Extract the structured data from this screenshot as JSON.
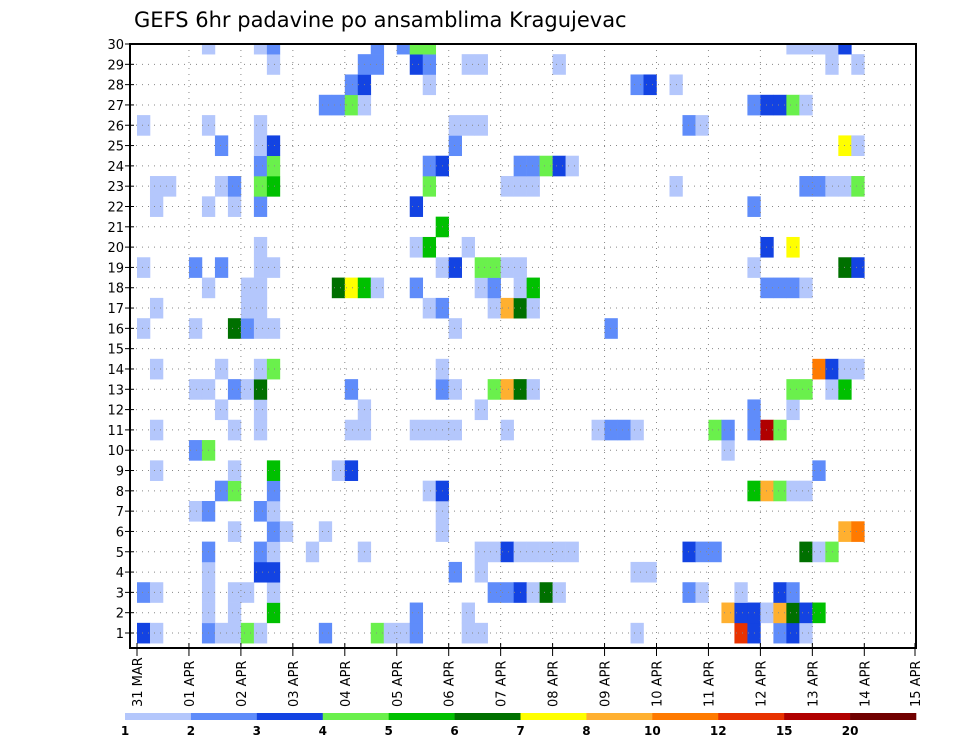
{
  "chart_data": {
    "type": "heatmap",
    "title": "GEFS 6hr padavine po ansamblima Kragujevac",
    "xlabel": "",
    "ylabel": "",
    "x_tick_labels": [
      "31 MAR",
      "01 APR",
      "02 APR",
      "03 APR",
      "04 APR",
      "05 APR",
      "06 APR",
      "07 APR",
      "08 APR",
      "09 APR",
      "10 APR",
      "11 APR",
      "12 APR",
      "13 APR",
      "14 APR",
      "15 APR"
    ],
    "y_tick_labels": [
      "1",
      "2",
      "3",
      "4",
      "5",
      "6",
      "7",
      "8",
      "9",
      "10",
      "11",
      "12",
      "13",
      "14",
      "15",
      "16",
      "17",
      "18",
      "19",
      "20",
      "21",
      "22",
      "23",
      "24",
      "25",
      "26",
      "27",
      "28",
      "29",
      "30"
    ],
    "ylim": [
      1,
      30
    ],
    "x_steps_per_day": 4,
    "x_step_hours": 6,
    "grid": true,
    "colorbar": {
      "labels": [
        "1",
        "2",
        "3",
        "4",
        "5",
        "6",
        "7",
        "8",
        "10",
        "12",
        "15",
        "20"
      ],
      "colors": [
        "#b4c7fc",
        "#5f8cfa",
        "#1343e2",
        "#6af04c",
        "#00c000",
        "#007000",
        "#ffff00",
        "#ffb030",
        "#ff7a00",
        "#e83200",
        "#b00000",
        "#700000"
      ],
      "placement": "bottom"
    },
    "cells_note": "each cell = [time_step_index, colorbar_level_index(1-12)] per ensemble member row",
    "rows": {
      "30": [
        [
          5,
          1
        ],
        [
          9,
          1
        ],
        [
          10,
          2
        ],
        [
          18,
          2
        ],
        [
          20,
          2
        ],
        [
          21,
          4
        ],
        [
          22,
          4
        ],
        [
          50,
          1
        ],
        [
          51,
          1
        ],
        [
          52,
          1
        ],
        [
          53,
          1
        ],
        [
          54,
          3
        ]
      ],
      "29": [
        [
          10,
          1
        ],
        [
          17,
          2
        ],
        [
          18,
          2
        ],
        [
          21,
          3
        ],
        [
          22,
          2
        ],
        [
          25,
          1
        ],
        [
          26,
          1
        ],
        [
          32,
          1
        ],
        [
          53,
          1
        ],
        [
          55,
          1
        ]
      ],
      "28": [
        [
          16,
          2
        ],
        [
          17,
          3
        ],
        [
          22,
          1
        ],
        [
          38,
          2
        ],
        [
          39,
          3
        ],
        [
          41,
          1
        ]
      ],
      "27": [
        [
          14,
          2
        ],
        [
          15,
          2
        ],
        [
          16,
          4
        ],
        [
          17,
          1
        ],
        [
          47,
          2
        ],
        [
          48,
          3
        ],
        [
          49,
          3
        ],
        [
          50,
          4
        ],
        [
          51,
          1
        ]
      ],
      "26": [
        [
          0,
          1
        ],
        [
          5,
          1
        ],
        [
          9,
          1
        ],
        [
          24,
          1
        ],
        [
          25,
          1
        ],
        [
          26,
          1
        ],
        [
          42,
          2
        ],
        [
          43,
          1
        ]
      ],
      "25": [
        [
          6,
          2
        ],
        [
          9,
          1
        ],
        [
          10,
          3
        ],
        [
          24,
          2
        ],
        [
          54,
          7
        ],
        [
          55,
          1
        ]
      ],
      "24": [
        [
          9,
          2
        ],
        [
          10,
          4
        ],
        [
          22,
          2
        ],
        [
          23,
          3
        ],
        [
          29,
          2
        ],
        [
          30,
          2
        ],
        [
          31,
          4
        ],
        [
          32,
          3
        ],
        [
          33,
          1
        ]
      ],
      "23": [
        [
          1,
          1
        ],
        [
          2,
          1
        ],
        [
          6,
          1
        ],
        [
          7,
          2
        ],
        [
          9,
          4
        ],
        [
          10,
          5
        ],
        [
          22,
          4
        ],
        [
          28,
          1
        ],
        [
          29,
          1
        ],
        [
          30,
          1
        ],
        [
          41,
          1
        ],
        [
          51,
          2
        ],
        [
          52,
          2
        ],
        [
          53,
          1
        ],
        [
          54,
          1
        ],
        [
          55,
          4
        ]
      ],
      "22": [
        [
          1,
          1
        ],
        [
          5,
          1
        ],
        [
          7,
          1
        ],
        [
          9,
          2
        ],
        [
          21,
          3
        ],
        [
          47,
          2
        ]
      ],
      "21": [
        [
          23,
          5
        ]
      ],
      "20": [
        [
          9,
          1
        ],
        [
          21,
          1
        ],
        [
          22,
          5
        ],
        [
          25,
          1
        ],
        [
          48,
          3
        ],
        [
          50,
          7
        ]
      ],
      "19": [
        [
          0,
          1
        ],
        [
          4,
          2
        ],
        [
          6,
          2
        ],
        [
          9,
          1
        ],
        [
          10,
          1
        ],
        [
          23,
          1
        ],
        [
          24,
          3
        ],
        [
          26,
          4
        ],
        [
          27,
          4
        ],
        [
          28,
          1
        ],
        [
          29,
          1
        ],
        [
          47,
          1
        ],
        [
          54,
          6
        ],
        [
          55,
          3
        ]
      ],
      "18": [
        [
          5,
          1
        ],
        [
          8,
          1
        ],
        [
          9,
          1
        ],
        [
          15,
          6
        ],
        [
          16,
          7
        ],
        [
          17,
          5
        ],
        [
          18,
          1
        ],
        [
          21,
          2
        ],
        [
          26,
          1
        ],
        [
          27,
          2
        ],
        [
          29,
          1
        ],
        [
          30,
          5
        ],
        [
          48,
          2
        ],
        [
          49,
          2
        ],
        [
          50,
          2
        ],
        [
          51,
          1
        ]
      ],
      "17": [
        [
          1,
          1
        ],
        [
          8,
          1
        ],
        [
          9,
          1
        ],
        [
          22,
          1
        ],
        [
          23,
          2
        ],
        [
          27,
          1
        ],
        [
          28,
          8
        ],
        [
          29,
          6
        ],
        [
          30,
          1
        ]
      ],
      "16": [
        [
          0,
          1
        ],
        [
          4,
          1
        ],
        [
          7,
          6
        ],
        [
          8,
          2
        ],
        [
          9,
          1
        ],
        [
          10,
          1
        ],
        [
          24,
          1
        ],
        [
          36,
          2
        ]
      ],
      "15": [],
      "14": [
        [
          1,
          1
        ],
        [
          6,
          1
        ],
        [
          9,
          1
        ],
        [
          10,
          4
        ],
        [
          23,
          1
        ],
        [
          52,
          9
        ],
        [
          53,
          3
        ],
        [
          54,
          1
        ],
        [
          55,
          1
        ]
      ],
      "13": [
        [
          4,
          1
        ],
        [
          5,
          1
        ],
        [
          7,
          2
        ],
        [
          8,
          1
        ],
        [
          9,
          6
        ],
        [
          16,
          2
        ],
        [
          23,
          2
        ],
        [
          24,
          1
        ],
        [
          27,
          4
        ],
        [
          28,
          8
        ],
        [
          29,
          6
        ],
        [
          30,
          1
        ],
        [
          50,
          4
        ],
        [
          51,
          4
        ],
        [
          53,
          1
        ],
        [
          54,
          5
        ]
      ],
      "12": [
        [
          6,
          1
        ],
        [
          9,
          1
        ],
        [
          17,
          1
        ],
        [
          26,
          1
        ],
        [
          47,
          2
        ],
        [
          50,
          1
        ]
      ],
      "11": [
        [
          1,
          1
        ],
        [
          7,
          1
        ],
        [
          9,
          1
        ],
        [
          16,
          1
        ],
        [
          17,
          1
        ],
        [
          21,
          1
        ],
        [
          22,
          1
        ],
        [
          23,
          1
        ],
        [
          24,
          1
        ],
        [
          28,
          1
        ],
        [
          35,
          1
        ],
        [
          36,
          2
        ],
        [
          37,
          2
        ],
        [
          38,
          1
        ],
        [
          44,
          4
        ],
        [
          45,
          2
        ],
        [
          47,
          2
        ],
        [
          48,
          11
        ],
        [
          49,
          4
        ]
      ],
      "10": [
        [
          4,
          2
        ],
        [
          5,
          4
        ],
        [
          45,
          1
        ]
      ],
      "9": [
        [
          1,
          1
        ],
        [
          7,
          1
        ],
        [
          10,
          5
        ],
        [
          15,
          1
        ],
        [
          16,
          3
        ],
        [
          52,
          2
        ]
      ],
      "8": [
        [
          6,
          2
        ],
        [
          7,
          4
        ],
        [
          10,
          2
        ],
        [
          22,
          1
        ],
        [
          23,
          3
        ],
        [
          47,
          5
        ],
        [
          48,
          8
        ],
        [
          49,
          4
        ],
        [
          50,
          1
        ],
        [
          51,
          1
        ]
      ],
      "7": [
        [
          4,
          1
        ],
        [
          5,
          2
        ],
        [
          9,
          2
        ],
        [
          10,
          1
        ],
        [
          23,
          1
        ]
      ],
      "6": [
        [
          7,
          1
        ],
        [
          10,
          2
        ],
        [
          11,
          1
        ],
        [
          14,
          1
        ],
        [
          23,
          1
        ],
        [
          54,
          8
        ],
        [
          55,
          9
        ]
      ],
      "5": [
        [
          5,
          2
        ],
        [
          9,
          2
        ],
        [
          10,
          1
        ],
        [
          13,
          1
        ],
        [
          17,
          1
        ],
        [
          26,
          1
        ],
        [
          27,
          1
        ],
        [
          28,
          3
        ],
        [
          29,
          1
        ],
        [
          30,
          1
        ],
        [
          31,
          1
        ],
        [
          32,
          1
        ],
        [
          33,
          1
        ],
        [
          42,
          3
        ],
        [
          43,
          2
        ],
        [
          44,
          2
        ],
        [
          51,
          6
        ],
        [
          52,
          1
        ],
        [
          53,
          4
        ]
      ],
      "4": [
        [
          5,
          1
        ],
        [
          9,
          3
        ],
        [
          10,
          3
        ],
        [
          24,
          2
        ],
        [
          26,
          1
        ],
        [
          38,
          1
        ],
        [
          39,
          1
        ]
      ],
      "3": [
        [
          0,
          2
        ],
        [
          1,
          1
        ],
        [
          5,
          1
        ],
        [
          7,
          1
        ],
        [
          8,
          1
        ],
        [
          10,
          1
        ],
        [
          27,
          2
        ],
        [
          28,
          2
        ],
        [
          29,
          3
        ],
        [
          30,
          1
        ],
        [
          31,
          6
        ],
        [
          32,
          1
        ],
        [
          42,
          2
        ],
        [
          43,
          1
        ],
        [
          46,
          1
        ],
        [
          49,
          3
        ],
        [
          50,
          2
        ]
      ],
      "2": [
        [
          5,
          1
        ],
        [
          7,
          1
        ],
        [
          10,
          5
        ],
        [
          21,
          2
        ],
        [
          25,
          1
        ],
        [
          45,
          8
        ],
        [
          46,
          3
        ],
        [
          47,
          3
        ],
        [
          48,
          1
        ],
        [
          49,
          8
        ],
        [
          50,
          6
        ],
        [
          51,
          3
        ],
        [
          52,
          5
        ]
      ],
      "1": [
        [
          0,
          3
        ],
        [
          1,
          1
        ],
        [
          5,
          2
        ],
        [
          6,
          1
        ],
        [
          7,
          1
        ],
        [
          8,
          4
        ],
        [
          9,
          1
        ],
        [
          14,
          2
        ],
        [
          18,
          4
        ],
        [
          19,
          1
        ],
        [
          20,
          1
        ],
        [
          21,
          2
        ],
        [
          25,
          1
        ],
        [
          26,
          1
        ],
        [
          38,
          1
        ],
        [
          46,
          10
        ],
        [
          47,
          3
        ],
        [
          49,
          2
        ],
        [
          50,
          3
        ],
        [
          51,
          1
        ]
      ]
    }
  }
}
